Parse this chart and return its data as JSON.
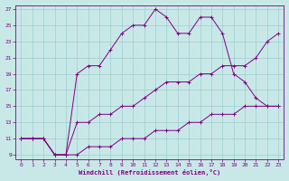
{
  "xlabel": "Windchill (Refroidissement éolien,°C)",
  "bg_color": "#c8e8e8",
  "line_color": "#800080",
  "xlim": [
    -0.5,
    23.5
  ],
  "ylim": [
    8.5,
    27.5
  ],
  "xticks": [
    0,
    1,
    2,
    3,
    4,
    5,
    6,
    7,
    8,
    9,
    10,
    11,
    12,
    13,
    14,
    15,
    16,
    17,
    18,
    19,
    20,
    21,
    22,
    23
  ],
  "yticks": [
    9,
    11,
    13,
    15,
    17,
    19,
    21,
    23,
    25,
    27
  ],
  "grid_color": "#9ECECE",
  "line1_x": [
    0,
    1,
    2,
    3,
    4,
    5,
    6,
    7,
    8,
    9,
    10,
    11,
    12,
    13,
    14,
    15,
    16,
    17,
    18,
    19,
    20,
    21,
    22,
    23
  ],
  "line1_y": [
    11,
    11,
    11,
    9,
    9,
    19,
    20,
    20,
    22,
    24,
    25,
    25,
    27,
    26,
    24,
    24,
    26,
    26,
    24,
    19,
    18,
    16,
    15,
    15
  ],
  "line2_x": [
    0,
    1,
    2,
    3,
    4,
    5,
    6,
    7,
    8,
    9,
    10,
    11,
    12,
    13,
    14,
    15,
    16,
    17,
    18,
    19,
    20,
    21,
    22,
    23
  ],
  "line2_y": [
    11,
    11,
    11,
    9,
    9,
    13,
    13,
    14,
    14,
    15,
    15,
    16,
    17,
    18,
    18,
    18,
    19,
    19,
    20,
    20,
    20,
    21,
    23,
    24
  ],
  "line3_x": [
    0,
    1,
    2,
    3,
    4,
    5,
    6,
    7,
    8,
    9,
    10,
    11,
    12,
    13,
    14,
    15,
    16,
    17,
    18,
    19,
    20,
    21,
    22,
    23
  ],
  "line3_y": [
    11,
    11,
    11,
    9,
    9,
    9,
    10,
    10,
    10,
    11,
    11,
    11,
    12,
    12,
    12,
    13,
    13,
    14,
    14,
    14,
    15,
    15,
    15,
    15
  ]
}
